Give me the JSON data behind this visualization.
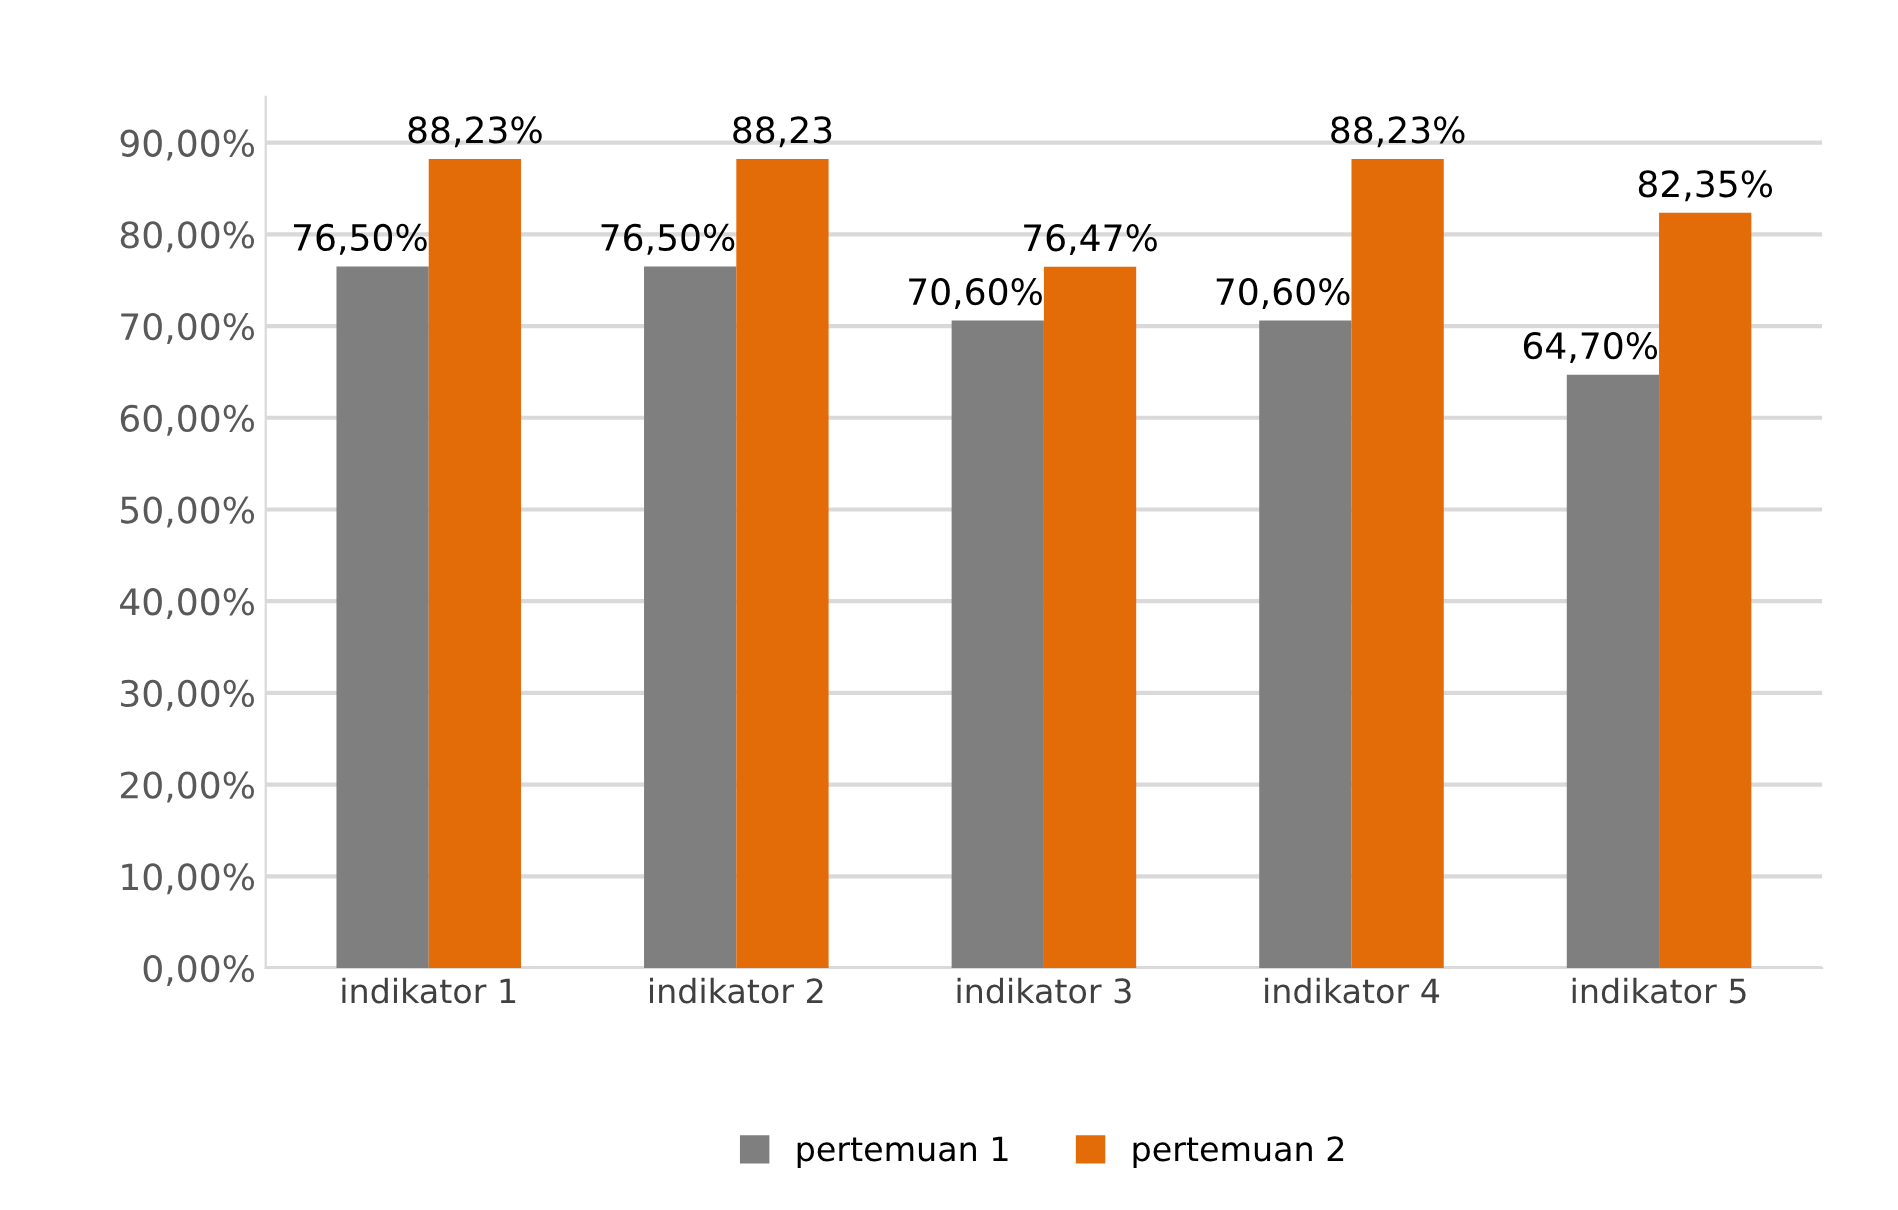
{
  "chart_data": {
    "type": "bar",
    "categories": [
      "indikator 1",
      "indikator 2",
      "indikator 3",
      "indikator 4",
      "indikator 5"
    ],
    "series": [
      {
        "name": "pertemuan 1",
        "color": "#7f7f7f",
        "values": [
          76.5,
          76.5,
          70.6,
          70.6,
          64.7
        ],
        "value_labels": [
          "76,50%",
          "76,50%",
          "70,60%",
          "70,60%",
          "64,70%"
        ]
      },
      {
        "name": "pertemuan 2",
        "color": "#e36c09",
        "values": [
          88.23,
          88.23,
          76.47,
          88.23,
          82.35
        ],
        "value_labels": [
          "88,23%",
          "88,23",
          "76,47%",
          "88,23%",
          "82,35%"
        ]
      }
    ],
    "ylim": [
      0,
      95
    ],
    "yticks": [
      {
        "value": 0,
        "label": "0,00%"
      },
      {
        "value": 10,
        "label": "10,00%"
      },
      {
        "value": 20,
        "label": "20,00%"
      },
      {
        "value": 30,
        "label": "30,00%"
      },
      {
        "value": 40,
        "label": "40,00%"
      },
      {
        "value": 50,
        "label": "50,00%"
      },
      {
        "value": 60,
        "label": "60,00%"
      },
      {
        "value": 70,
        "label": "70,00%"
      },
      {
        "value": 80,
        "label": "80,00%"
      },
      {
        "value": 90,
        "label": "90,00%"
      }
    ],
    "grid": "y",
    "legend": "bottom"
  }
}
